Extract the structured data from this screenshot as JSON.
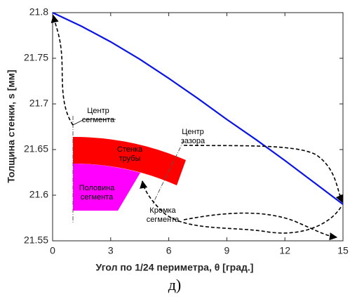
{
  "chart_data": {
    "type": "line",
    "x_label": "Угол по 1/24 периметра, θ [град.]",
    "y_label": "Толщина стенки, s [мм]",
    "caption": "д)",
    "x": [
      0,
      1.5,
      3,
      4.5,
      6,
      7.5,
      9,
      10.5,
      12,
      13.5,
      15
    ],
    "series": [
      {
        "color": "#0a14e6",
        "values": [
          21.8,
          21.785,
          21.768,
          21.749,
          21.728,
          21.706,
          21.683,
          21.661,
          21.638,
          21.614,
          21.59
        ]
      }
    ],
    "xlim": [
      0,
      15
    ],
    "ylim": [
      21.55,
      21.8
    ],
    "xticks": [
      0,
      3,
      6,
      9,
      12,
      15
    ],
    "yticks": [
      21.55,
      21.6,
      21.65,
      21.7,
      21.75,
      21.8
    ],
    "grid": false,
    "annotations": [
      {
        "lines": [
          "Центр",
          "сегмента"
        ]
      },
      {
        "lines": [
          "Центр",
          "зазора"
        ]
      },
      {
        "lines": [
          "Стенка",
          "трубы"
        ]
      },
      {
        "lines": [
          "Половина",
          "сегмента"
        ]
      },
      {
        "lines": [
          "Кромка",
          "сегмента"
        ]
      }
    ]
  }
}
